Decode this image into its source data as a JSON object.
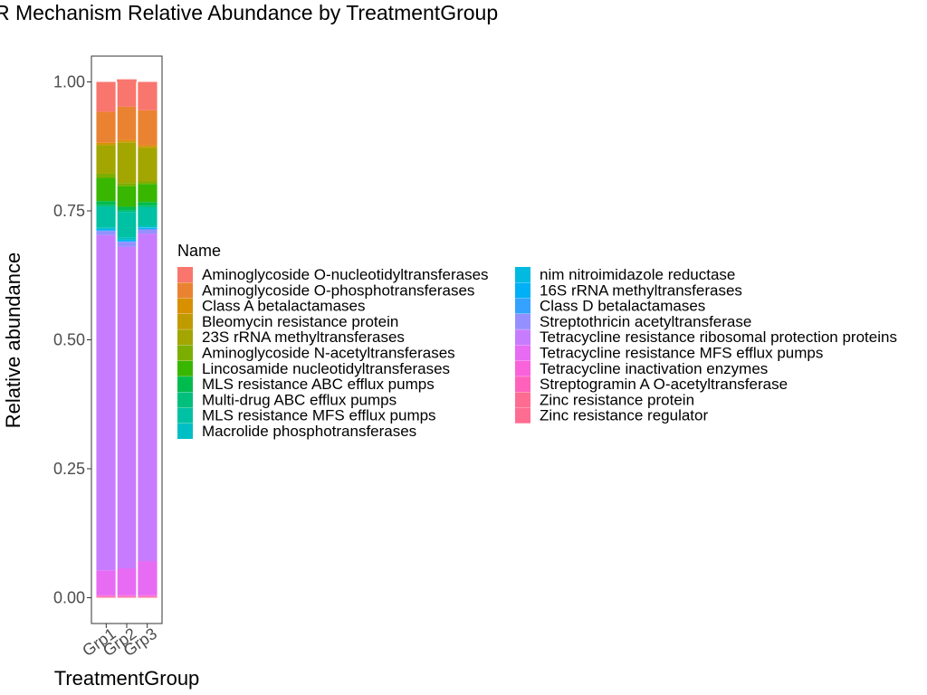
{
  "chart_data": {
    "type": "bar",
    "stacked": true,
    "title": "R Mechanism Relative Abundance by TreatmentGroup",
    "xlabel": "TreatmentGroup",
    "ylabel": "Relative abundance",
    "categories": [
      "Grp1",
      "Grp2",
      "Grp3"
    ],
    "ylim": [
      -0.05,
      1.05
    ],
    "yticks": [
      0.0,
      0.25,
      0.5,
      0.75,
      1.0
    ],
    "ytick_labels": [
      "0.00",
      "0.25",
      "0.50",
      "0.75",
      "1.00"
    ],
    "legend_title": "Name",
    "legend_position": "right",
    "grid": false,
    "series": [
      {
        "name": "Aminoglycoside O-nucleotidyltransferases",
        "color": "#F8766D",
        "values": [
          0.058,
          0.053,
          0.055
        ]
      },
      {
        "name": "Aminoglycoside O-phosphotransferases",
        "color": "#EA8331",
        "values": [
          0.06,
          0.065,
          0.068
        ]
      },
      {
        "name": "Class A betalactamases",
        "color": "#D89000",
        "values": [
          0.003,
          0.003,
          0.003
        ]
      },
      {
        "name": "Bleomycin resistance protein",
        "color": "#C09B00",
        "values": [
          0.002,
          0.002,
          0.002
        ]
      },
      {
        "name": "23S rRNA methyltransferases",
        "color": "#A3A500",
        "values": [
          0.055,
          0.078,
          0.065
        ]
      },
      {
        "name": "Aminoglycoside N-acetyltransferases",
        "color": "#7CAE00",
        "values": [
          0.008,
          0.006,
          0.005
        ]
      },
      {
        "name": "Lincosamide nucleotidyltransferases",
        "color": "#39B600",
        "values": [
          0.045,
          0.04,
          0.035
        ]
      },
      {
        "name": "MLS resistance ABC efflux pumps",
        "color": "#00BB4E",
        "values": [
          0.008,
          0.007,
          0.007
        ]
      },
      {
        "name": "Multi-drug ABC efflux pumps",
        "color": "#00BF7D",
        "values": [
          0.003,
          0.003,
          0.003
        ]
      },
      {
        "name": "MLS resistance MFS efflux pumps",
        "color": "#00C1A3",
        "values": [
          0.04,
          0.05,
          0.036
        ]
      },
      {
        "name": "Macrolide phosphotransferases",
        "color": "#00BFC4",
        "values": [
          0.003,
          0.004,
          0.003
        ]
      },
      {
        "name": "nim nitroimidazole reductase",
        "color": "#00BAE0",
        "values": [
          0.001,
          0.001,
          0.001
        ]
      },
      {
        "name": "16S rRNA methyltransferases",
        "color": "#00B0F6",
        "values": [
          0.002,
          0.002,
          0.002
        ]
      },
      {
        "name": "Class D betalactamases",
        "color": "#35A2FF",
        "values": [
          0.001,
          0.001,
          0.001
        ]
      },
      {
        "name": "Streptothricin acetyltransferase",
        "color": "#9590FF",
        "values": [
          0.008,
          0.01,
          0.008
        ]
      },
      {
        "name": "Tetracycline resistance ribosomal protection proteins",
        "color": "#C77CFF",
        "values": [
          0.65,
          0.623,
          0.635
        ]
      },
      {
        "name": "Tetracycline resistance MFS efflux pumps",
        "color": "#E76BF3",
        "values": [
          0.048,
          0.052,
          0.066
        ]
      },
      {
        "name": "Tetracycline inactivation enzymes",
        "color": "#FA62DB",
        "values": [
          0.002,
          0.002,
          0.002
        ]
      },
      {
        "name": "Streptogramin A O-acetyltransferase",
        "color": "#FF62BC",
        "values": [
          0.001,
          0.001,
          0.001
        ]
      },
      {
        "name": "Zinc resistance protein",
        "color": "#FF6C91",
        "values": [
          0.001,
          0.001,
          0.001
        ]
      },
      {
        "name": "Zinc resistance regulator",
        "color": "#FF6C91",
        "values": [
          0.001,
          0.001,
          0.001
        ]
      }
    ],
    "bar_fill_colors_bottom_to_top": [
      "#D672F0",
      "#A58AFF",
      "#7E9CFF"
    ]
  }
}
